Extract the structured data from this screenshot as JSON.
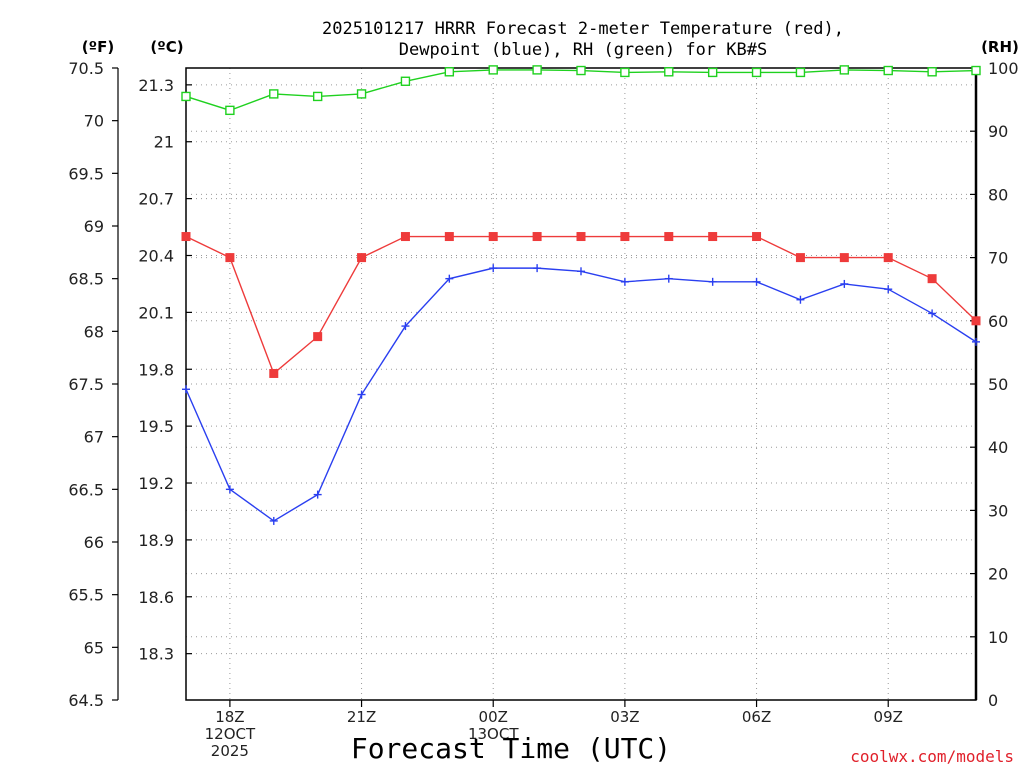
{
  "chart_data": {
    "type": "line",
    "title": "2025101217 HRRR Forecast 2-meter Temperature (red),",
    "subtitle": "Dewpoint (blue), RH (green) for KB#S",
    "xlabel": "Forecast Time (UTC)",
    "credit": "coolwx.com/models",
    "units": {
      "fahrenheit": "(ºF)",
      "celsius": "(ºC)",
      "rh": "(RH)"
    },
    "x_range": [
      17,
      35
    ],
    "x_ticks": [
      {
        "x": 18,
        "lines": [
          "18Z",
          "12OCT",
          "2025"
        ]
      },
      {
        "x": 21,
        "lines": [
          "21Z"
        ]
      },
      {
        "x": 24,
        "lines": [
          "00Z",
          "13OCT"
        ]
      },
      {
        "x": 27,
        "lines": [
          "03Z"
        ]
      },
      {
        "x": 30,
        "lines": [
          "06Z"
        ]
      },
      {
        "x": 33,
        "lines": [
          "09Z"
        ]
      }
    ],
    "y_fahrenheit": {
      "range": [
        64.5,
        70.5
      ],
      "ticks": [
        "64.5",
        "65",
        "65.5",
        "66",
        "66.5",
        "67",
        "67.5",
        "68",
        "68.5",
        "69",
        "69.5",
        "70",
        "70.5"
      ]
    },
    "y_celsius": {
      "range": [
        18.0556,
        21.3889
      ],
      "ticks": [
        "18.3",
        "18.6",
        "18.9",
        "19.2",
        "19.5",
        "19.8",
        "20.1",
        "20.4",
        "20.7",
        "21",
        "21.3"
      ]
    },
    "y_rh": {
      "range": [
        0,
        100
      ],
      "ticks": [
        "0",
        "10",
        "20",
        "30",
        "40",
        "50",
        "60",
        "70",
        "80",
        "90",
        "100"
      ]
    },
    "grid": true,
    "series": [
      {
        "name": "Temperature",
        "axis": "fahrenheit",
        "color": "#ee3b3b",
        "marker": "filled-square",
        "x": [
          17,
          18,
          19,
          20,
          21,
          22,
          23,
          24,
          25,
          26,
          27,
          28,
          29,
          30,
          31,
          32,
          33,
          34,
          35
        ],
        "values": [
          68.9,
          68.7,
          67.6,
          67.95,
          68.7,
          68.9,
          68.9,
          68.9,
          68.9,
          68.9,
          68.9,
          68.9,
          68.9,
          68.9,
          68.7,
          68.7,
          68.7,
          68.5,
          68.1
        ]
      },
      {
        "name": "Dewpoint",
        "axis": "fahrenheit",
        "color": "#2a3ff0",
        "marker": "plus",
        "x": [
          17,
          18,
          19,
          20,
          21,
          22,
          23,
          24,
          25,
          26,
          27,
          28,
          29,
          30,
          31,
          32,
          33,
          34,
          35
        ],
        "values": [
          67.45,
          66.5,
          66.2,
          66.45,
          67.4,
          68.05,
          68.5,
          68.6,
          68.6,
          68.57,
          68.47,
          68.5,
          68.47,
          68.47,
          68.3,
          68.45,
          68.4,
          68.17,
          67.9
        ]
      },
      {
        "name": "RH",
        "axis": "rh",
        "color": "#1fd11f",
        "marker": "open-square",
        "x": [
          17,
          18,
          19,
          20,
          21,
          22,
          23,
          24,
          25,
          26,
          27,
          28,
          29,
          30,
          31,
          32,
          33,
          34,
          35
        ],
        "values": [
          95.5,
          93.3,
          95.9,
          95.5,
          95.9,
          97.9,
          99.4,
          99.7,
          99.7,
          99.6,
          99.3,
          99.4,
          99.3,
          99.3,
          99.3,
          99.7,
          99.6,
          99.4,
          99.6
        ]
      }
    ]
  }
}
